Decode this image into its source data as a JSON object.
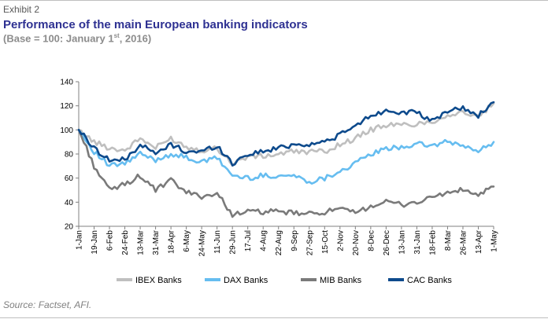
{
  "header": {
    "exhibit": "Exhibit 2",
    "title": "Performance of the main European banking indicators",
    "subtitle_pre": "(Base = 100: January 1",
    "subtitle_sup": "st",
    "subtitle_post": ", 2016)"
  },
  "source": "Source: Factset, AFI.",
  "chart_data": {
    "type": "line",
    "title": "Performance of the main European banking indicators",
    "subtitle": "(Base = 100: January 1st, 2016)",
    "xlabel": "",
    "ylabel": "",
    "ylim": [
      20,
      140
    ],
    "yticks": [
      20,
      40,
      60,
      80,
      100,
      120,
      140
    ],
    "grid": false,
    "legend_position": "bottom",
    "x_tick_labels": [
      "1-Jan",
      "19-Jan",
      "6-Feb",
      "24-Feb",
      "13-Mar",
      "31-Mar",
      "18-Apr",
      "6-May",
      "24-May",
      "11-Jun",
      "29-Jun",
      "17-Jul",
      "4-Aug",
      "22-Aug",
      "9-Sep",
      "27-Sep",
      "15-Oct",
      "2-Nov",
      "20-Nov",
      "8-Dec",
      "26-Dec",
      "13-Jan",
      "31-Jan",
      "18-Feb",
      "8-Mar",
      "26-Mar",
      "13-Apr",
      "1-May"
    ],
    "series": [
      {
        "name": "IBEX Banks",
        "color": "#bfbfbf",
        "values": [
          100,
          90,
          85,
          83,
          93,
          85,
          93,
          86,
          83,
          85,
          72,
          78,
          78,
          80,
          82,
          82,
          82,
          88,
          93,
          100,
          104,
          104,
          105,
          107,
          112,
          115,
          110,
          122
        ]
      },
      {
        "name": "DAX Banks",
        "color": "#66bdf0",
        "values": [
          100,
          82,
          70,
          72,
          80,
          75,
          80,
          77,
          73,
          77,
          62,
          60,
          62,
          62,
          62,
          57,
          60,
          66,
          72,
          80,
          84,
          86,
          88,
          87,
          90,
          87,
          82,
          90
        ]
      },
      {
        "name": "MIB Banks",
        "color": "#7a7a7a",
        "values": [
          100,
          70,
          50,
          55,
          62,
          50,
          58,
          48,
          45,
          47,
          30,
          32,
          32,
          32,
          31,
          30,
          32,
          34,
          31,
          37,
          40,
          38,
          40,
          44,
          48,
          50,
          46,
          53
        ]
      },
      {
        "name": "CAC Banks",
        "color": "#0d4a8c",
        "values": [
          100,
          85,
          75,
          75,
          88,
          80,
          88,
          82,
          82,
          87,
          72,
          80,
          82,
          85,
          88,
          88,
          90,
          96,
          103,
          112,
          116,
          115,
          114,
          107,
          116,
          118,
          112,
          123
        ]
      }
    ]
  }
}
